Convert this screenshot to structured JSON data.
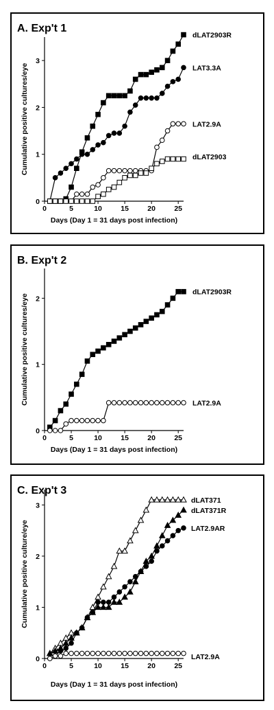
{
  "chart_data": [
    {
      "type": "line",
      "title": "A. Exp't 1",
      "xlabel": "Days (Day 1 = 31 days post infection)",
      "ylabel": "Cumulative positive cultures/eye",
      "xlim": [
        0,
        26
      ],
      "ylim": [
        0,
        3.5
      ],
      "xticks": [
        0,
        5,
        10,
        15,
        20,
        25
      ],
      "yticks": [
        0,
        1,
        2,
        3
      ],
      "series": [
        {
          "name": "dLAT2903R",
          "marker": "filled-square",
          "x": [
            1,
            2,
            3,
            4,
            5,
            6,
            7,
            8,
            9,
            10,
            11,
            12,
            13,
            14,
            15,
            16,
            17,
            18,
            19,
            20,
            21,
            22,
            23,
            24,
            25,
            26
          ],
          "y": [
            0,
            0,
            0,
            0.05,
            0.3,
            0.7,
            1.05,
            1.35,
            1.6,
            1.85,
            2.1,
            2.25,
            2.25,
            2.25,
            2.25,
            2.35,
            2.6,
            2.7,
            2.7,
            2.75,
            2.8,
            2.85,
            3.0,
            3.2,
            3.35,
            3.55
          ]
        },
        {
          "name": "LAT3.3A",
          "marker": "filled-circle",
          "x": [
            1,
            2,
            3,
            4,
            5,
            6,
            7,
            8,
            9,
            10,
            11,
            12,
            13,
            14,
            15,
            16,
            17,
            18,
            19,
            20,
            21,
            22,
            23,
            24,
            25,
            26
          ],
          "y": [
            0,
            0.5,
            0.6,
            0.7,
            0.8,
            0.9,
            1.0,
            1.0,
            1.1,
            1.2,
            1.25,
            1.4,
            1.45,
            1.45,
            1.6,
            1.9,
            2.05,
            2.2,
            2.2,
            2.2,
            2.2,
            2.3,
            2.45,
            2.55,
            2.6,
            2.85
          ]
        },
        {
          "name": "LAT2.9A",
          "marker": "open-circle",
          "x": [
            1,
            2,
            3,
            4,
            5,
            6,
            7,
            8,
            9,
            10,
            11,
            12,
            13,
            14,
            15,
            16,
            17,
            18,
            19,
            20,
            21,
            22,
            23,
            24,
            25,
            26
          ],
          "y": [
            0,
            0,
            0,
            0,
            0,
            0.15,
            0.15,
            0.15,
            0.3,
            0.35,
            0.5,
            0.65,
            0.65,
            0.65,
            0.65,
            0.65,
            0.65,
            0.65,
            0.65,
            0.65,
            1.15,
            1.3,
            1.5,
            1.65,
            1.65,
            1.65
          ]
        },
        {
          "name": "dLAT2903",
          "marker": "open-square",
          "x": [
            1,
            2,
            3,
            4,
            5,
            6,
            7,
            8,
            9,
            10,
            11,
            12,
            13,
            14,
            15,
            16,
            17,
            18,
            19,
            20,
            21,
            22,
            23,
            24,
            25,
            26
          ],
          "y": [
            0,
            0,
            0,
            0,
            0,
            0,
            0,
            0,
            0,
            0.1,
            0.15,
            0.25,
            0.3,
            0.4,
            0.5,
            0.55,
            0.55,
            0.6,
            0.6,
            0.7,
            0.8,
            0.85,
            0.9,
            0.9,
            0.9,
            0.9
          ]
        }
      ]
    },
    {
      "type": "line",
      "title": "B. Exp't 2",
      "xlabel": "Days (Day 1 = 31 days post infection)",
      "ylabel": "Cumulative positive cultures/eye",
      "xlim": [
        0,
        26
      ],
      "ylim": [
        0,
        2.45
      ],
      "xticks": [
        0,
        5,
        10,
        15,
        20,
        25
      ],
      "yticks": [
        0,
        1,
        2
      ],
      "series": [
        {
          "name": "dLAT2903R",
          "marker": "filled-square",
          "x": [
            1,
            2,
            3,
            4,
            5,
            6,
            7,
            8,
            9,
            10,
            11,
            12,
            13,
            14,
            15,
            16,
            17,
            18,
            19,
            20,
            21,
            22,
            23,
            24,
            25,
            26
          ],
          "y": [
            0.05,
            0.15,
            0.3,
            0.4,
            0.55,
            0.7,
            0.85,
            1.05,
            1.15,
            1.2,
            1.25,
            1.3,
            1.35,
            1.4,
            1.45,
            1.5,
            1.55,
            1.6,
            1.65,
            1.7,
            1.75,
            1.8,
            1.9,
            2.0,
            2.1,
            2.1
          ]
        },
        {
          "name": "LAT2.9A",
          "marker": "open-circle",
          "x": [
            1,
            2,
            3,
            4,
            5,
            6,
            7,
            8,
            9,
            10,
            11,
            12,
            13,
            14,
            15,
            16,
            17,
            18,
            19,
            20,
            21,
            22,
            23,
            24,
            25,
            26
          ],
          "y": [
            0,
            0,
            0,
            0.1,
            0.15,
            0.15,
            0.15,
            0.15,
            0.15,
            0.15,
            0.15,
            0.42,
            0.42,
            0.42,
            0.42,
            0.42,
            0.42,
            0.42,
            0.42,
            0.42,
            0.42,
            0.42,
            0.42,
            0.42,
            0.42,
            0.42
          ]
        }
      ]
    },
    {
      "type": "line",
      "title": "C. Exp't 3",
      "xlabel": "Days (Day 1 = 31 days post infection)",
      "ylabel": "Cumulative positive culture/eye",
      "xlim": [
        0,
        26
      ],
      "ylim": [
        0,
        3.3
      ],
      "xticks": [
        0,
        5,
        10,
        15,
        20,
        25
      ],
      "yticks": [
        0,
        1,
        2,
        3
      ],
      "series": [
        {
          "name": "dLAT371",
          "marker": "open-triangle",
          "x": [
            1,
            2,
            3,
            4,
            5,
            6,
            7,
            8,
            9,
            10,
            11,
            12,
            13,
            14,
            15,
            16,
            17,
            18,
            19,
            20,
            21,
            22,
            23,
            24,
            25,
            26
          ],
          "y": [
            0.1,
            0.2,
            0.3,
            0.4,
            0.5,
            0.5,
            0.6,
            0.8,
            1.0,
            1.2,
            1.4,
            1.6,
            1.8,
            2.1,
            2.1,
            2.3,
            2.5,
            2.7,
            2.9,
            3.1,
            3.1,
            3.1,
            3.1,
            3.1,
            3.1,
            3.1
          ]
        },
        {
          "name": "dLAT371R",
          "marker": "filled-triangle",
          "x": [
            1,
            2,
            3,
            4,
            5,
            6,
            7,
            8,
            9,
            10,
            11,
            12,
            13,
            14,
            15,
            16,
            17,
            18,
            19,
            20,
            21,
            22,
            23,
            24,
            25,
            26
          ],
          "y": [
            0.1,
            0.15,
            0.2,
            0.3,
            0.4,
            0.5,
            0.6,
            0.8,
            0.9,
            1.0,
            1.0,
            1.0,
            1.1,
            1.1,
            1.2,
            1.3,
            1.5,
            1.7,
            1.9,
            2.0,
            2.2,
            2.4,
            2.6,
            2.7,
            2.8,
            2.9
          ]
        },
        {
          "name": "LAT2.9AR",
          "marker": "filled-circle",
          "x": [
            1,
            2,
            3,
            4,
            5,
            6,
            7,
            8,
            9,
            10,
            11,
            12,
            13,
            14,
            15,
            16,
            17,
            18,
            19,
            20,
            21,
            22,
            23,
            24,
            25,
            26
          ],
          "y": [
            0,
            0.05,
            0.15,
            0.2,
            0.3,
            0.5,
            0.6,
            0.8,
            0.9,
            1.1,
            1.1,
            1.1,
            1.2,
            1.3,
            1.4,
            1.5,
            1.6,
            1.7,
            1.8,
            1.9,
            2.1,
            2.2,
            2.3,
            2.4,
            2.5,
            2.55
          ]
        },
        {
          "name": "LAT2.9A",
          "marker": "open-circle",
          "x": [
            1,
            2,
            3,
            4,
            5,
            6,
            7,
            8,
            9,
            10,
            11,
            12,
            13,
            14,
            15,
            16,
            17,
            18,
            19,
            20,
            21,
            22,
            23,
            24,
            25,
            26
          ],
          "y": [
            0,
            0.05,
            0.05,
            0.1,
            0.1,
            0.1,
            0.1,
            0.1,
            0.1,
            0.1,
            0.1,
            0.1,
            0.1,
            0.1,
            0.1,
            0.1,
            0.1,
            0.1,
            0.1,
            0.1,
            0.1,
            0.1,
            0.1,
            0.1,
            0.1,
            0.1
          ]
        }
      ]
    }
  ]
}
